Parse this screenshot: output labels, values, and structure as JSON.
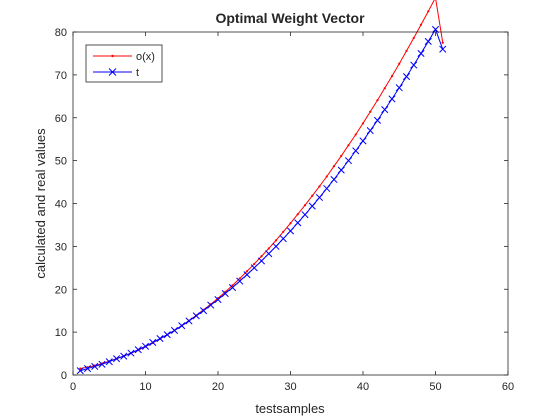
{
  "chart_data": {
    "type": "line",
    "title": "Optimal Weight Vector",
    "xlabel": "testsamples",
    "ylabel": "calculated and real values",
    "xlim": [
      0,
      60
    ],
    "ylim": [
      0,
      80
    ],
    "xticks": [
      0,
      10,
      20,
      30,
      40,
      50,
      60
    ],
    "yticks": [
      0,
      10,
      20,
      30,
      40,
      50,
      60,
      70,
      80
    ],
    "grid": false,
    "legend_position": "top-left",
    "x": [
      1,
      2,
      3,
      4,
      5,
      6,
      7,
      8,
      9,
      10,
      11,
      12,
      13,
      14,
      15,
      16,
      17,
      18,
      19,
      20,
      21,
      22,
      23,
      24,
      25,
      26,
      27,
      28,
      29,
      30,
      31,
      32,
      33,
      34,
      35,
      36,
      37,
      38,
      39,
      40,
      41,
      42,
      43,
      44,
      45,
      46,
      47,
      48,
      49,
      50,
      51
    ],
    "series": [
      {
        "name": "o(x)",
        "color": "#ff0000",
        "marker": "dot",
        "values": [
          1.5,
          1.8,
          2.2,
          2.7,
          3.2,
          3.8,
          4.4,
          5.1,
          5.8,
          6.6,
          7.5,
          8.4,
          9.4,
          10.4,
          11.5,
          12.7,
          13.9,
          15.2,
          16.5,
          17.9,
          19.4,
          20.9,
          22.5,
          24.2,
          25.9,
          27.7,
          29.5,
          31.4,
          33.4,
          35.4,
          37.5,
          39.6,
          41.8,
          44.0,
          46.3,
          48.7,
          51.1,
          53.6,
          56.1,
          58.7,
          61.4,
          64.1,
          66.9,
          69.7,
          72.6,
          75.6,
          78.6,
          81.7,
          84.8,
          88.0,
          77.5
        ]
      },
      {
        "name": "t",
        "color": "#0000ff",
        "marker": "x",
        "values": [
          1.0,
          1.5,
          2.0,
          2.5,
          3.1,
          3.8,
          4.4,
          5.1,
          5.9,
          6.7,
          7.6,
          8.5,
          9.4,
          10.4,
          11.5,
          12.6,
          13.8,
          15.0,
          16.3,
          17.6,
          19.0,
          20.4,
          21.9,
          23.4,
          25.0,
          26.6,
          28.3,
          30.0,
          31.8,
          33.6,
          35.5,
          37.4,
          39.4,
          41.4,
          43.5,
          45.6,
          47.8,
          50.0,
          52.3,
          54.6,
          57.0,
          59.4,
          61.9,
          64.4,
          67.0,
          69.6,
          72.3,
          75.0,
          77.8,
          80.6,
          76.0
        ]
      }
    ]
  }
}
